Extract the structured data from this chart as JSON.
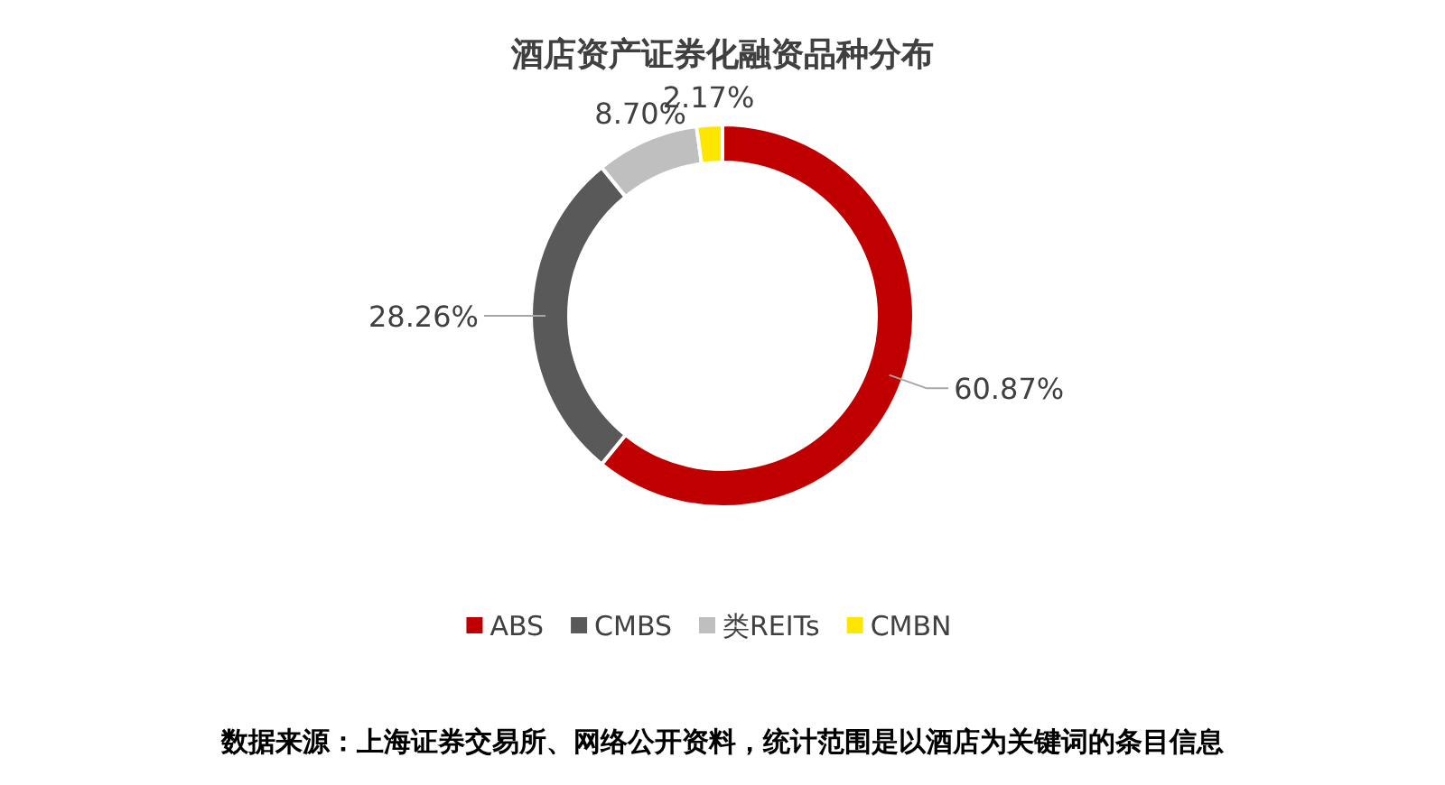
{
  "chart_data": {
    "type": "donut",
    "title": "酒店资产证券化融资品种分布",
    "categories": [
      "ABS",
      "CMBS",
      "类REITs",
      "CMBN"
    ],
    "values": [
      60.87,
      28.26,
      8.7,
      2.17
    ],
    "colors": [
      "#c00000",
      "#595959",
      "#bfbfbf",
      "#ffe600"
    ],
    "value_labels": [
      "60.87%",
      "28.26%",
      "8.70%",
      "2.17%"
    ],
    "legend": "bottom",
    "annotations": [
      "数据来源：上海证券交易所、网络公开资料，统计范围是以酒店为关键词的条目信息"
    ]
  }
}
